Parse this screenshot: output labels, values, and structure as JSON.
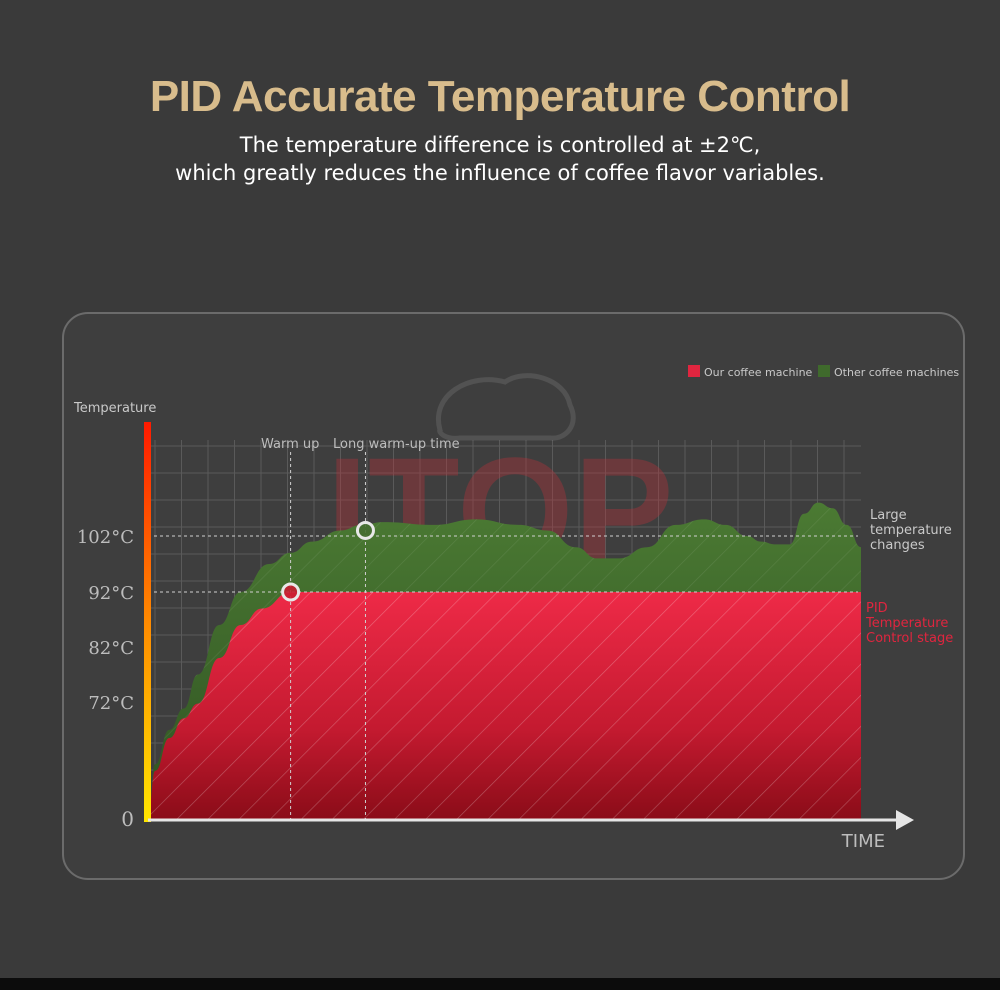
{
  "header": {
    "title": "PID Accurate Temperature Control",
    "subtitle_line1": "The temperature difference is controlled at ±2℃,",
    "subtitle_line2": "which greatly reduces the influence of coffee flavor variables."
  },
  "watermark": {
    "text": "ITOP"
  },
  "colors": {
    "title": "#d8bc8c",
    "our_machine": "#e0253f",
    "other_machines": "#3f6a2c",
    "annotation_red": "#e0253f"
  },
  "chart_data": {
    "type": "area",
    "xlabel": "TIME",
    "ylabel": "Temperature",
    "y_ticks": [
      {
        "label": "0",
        "value": 0
      },
      {
        "label": "72°C",
        "value": 72
      },
      {
        "label": "82°C",
        "value": 82
      },
      {
        "label": "92°C",
        "value": 92
      },
      {
        "label": "102°C",
        "value": 102
      }
    ],
    "ylim": [
      0,
      120
    ],
    "grid": true,
    "legend": {
      "placement": "top-right",
      "entries": [
        {
          "label": "Our coffee machine",
          "color": "#e0253f"
        },
        {
          "label": "Other coffee machines",
          "color": "#3f6a2c"
        }
      ]
    },
    "markers": [
      {
        "label": "Warm up",
        "x": 20,
        "y": 92
      },
      {
        "label": "Long warm-up time",
        "x": 30.5,
        "y": 103
      }
    ],
    "annotations": [
      {
        "text": [
          "Large",
          "temperature",
          "changes"
        ],
        "color": "#c9c9c9"
      },
      {
        "text": [
          "PID",
          "Temperature",
          "Control stage"
        ],
        "color": "#e0253f"
      }
    ],
    "series": [
      {
        "name": "Our coffee machine",
        "x": [
          0,
          1,
          3,
          5,
          7,
          10,
          13,
          16,
          20,
          25,
          40,
          60,
          80,
          100
        ],
        "y": [
          3,
          30,
          50,
          62,
          71,
          80,
          86,
          89,
          92,
          92,
          92,
          92,
          92,
          92
        ]
      },
      {
        "name": "Other coffee machines",
        "x": [
          0,
          1,
          3,
          5,
          7,
          10,
          13,
          17,
          20,
          23,
          27,
          30,
          33,
          40,
          46,
          52,
          56,
          60,
          63,
          66,
          70,
          74,
          78,
          81,
          84,
          86,
          88,
          90,
          92,
          94,
          96,
          98,
          100
        ],
        "y": [
          3,
          34,
          55,
          68,
          77,
          86,
          92,
          97,
          99,
          101,
          103,
          104,
          104.5,
          104,
          105,
          104,
          103,
          100,
          98,
          98,
          100,
          104,
          105,
          104,
          102,
          101,
          100.5,
          100.5,
          106,
          108,
          107,
          104,
          100
        ]
      }
    ]
  }
}
